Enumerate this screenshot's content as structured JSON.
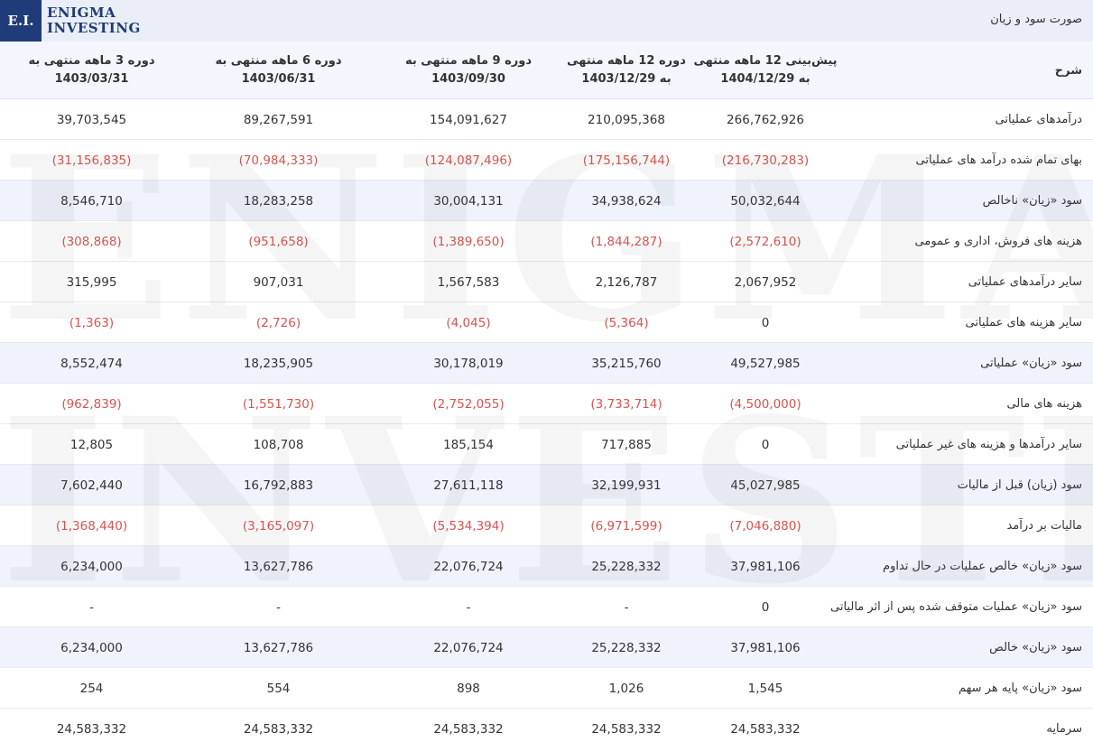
{
  "header": {
    "title": "صورت سود و زیان",
    "logo_mark": "E.I.",
    "logo_line1": "ENIGMA",
    "logo_line2": "INVESTING"
  },
  "watermark": {
    "line1": "ENIGMA",
    "line2": "INVESTING"
  },
  "columns": {
    "label": "شرح",
    "col5": "پیش‌بینی 12 ماهه منتهی به 1404/12/29",
    "col4": "دوره 12 ماهه منتهی به 1403/12/29",
    "col3": "دوره 9 ماهه منتهی به 1403/09/30",
    "col2": "دوره 6 ماهه منتهی به 1403/06/31",
    "col1": "دوره 3 ماهه منتهی به 1403/03/31"
  },
  "colors": {
    "negative": "#d9534f",
    "alt_row": "#eef3fc",
    "brand": "#1f3b7a"
  },
  "rows": [
    {
      "label": "درآمدهای عملیاتی",
      "v5": "266,762,926",
      "v4": "210,095,368",
      "v3": "154,091,627",
      "v2": "89,267,591",
      "v1": "39,703,545",
      "neg": false,
      "alt": false
    },
    {
      "label": "بهای تمام شده درآمد های عملیاتی",
      "v5": "(216,730,283)",
      "v4": "(175,156,744)",
      "v3": "(124,087,496)",
      "v2": "(70,984,333)",
      "v1": "(31,156,835)",
      "neg": true,
      "alt": false
    },
    {
      "label": "سود «زیان» ناخالص",
      "v5": "50,032,644",
      "v4": "34,938,624",
      "v3": "30,004,131",
      "v2": "18,283,258",
      "v1": "8,546,710",
      "neg": false,
      "alt": true
    },
    {
      "label": "هزینه های فروش، اداری و عمومی",
      "v5": "(2,572,610)",
      "v4": "(1,844,287)",
      "v3": "(1,389,650)",
      "v2": "(951,658)",
      "v1": "(308,868)",
      "neg": true,
      "alt": false
    },
    {
      "label": "سایر درآمدهای عملیاتی",
      "v5": "2,067,952",
      "v4": "2,126,787",
      "v3": "1,567,583",
      "v2": "907,031",
      "v1": "315,995",
      "neg": false,
      "alt": false
    },
    {
      "label": "سایر هزینه های عملیاتی",
      "v5": "0",
      "v4": "(5,364)",
      "v3": "(4,045)",
      "v2": "(2,726)",
      "v1": "(1,363)",
      "neg": true,
      "alt": false
    },
    {
      "label": "سود «زیان» عملیاتی",
      "v5": "49,527,985",
      "v4": "35,215,760",
      "v3": "30,178,019",
      "v2": "18,235,905",
      "v1": "8,552,474",
      "neg": false,
      "alt": true
    },
    {
      "label": "هزینه های مالی",
      "v5": "(4,500,000)",
      "v4": "(3,733,714)",
      "v3": "(2,752,055)",
      "v2": "(1,551,730)",
      "v1": "(962,839)",
      "neg": true,
      "alt": false
    },
    {
      "label": "سایر درآمدها و هزینه های غیر عملیاتی",
      "v5": "0",
      "v4": "717,885",
      "v3": "185,154",
      "v2": "108,708",
      "v1": "12,805",
      "neg": false,
      "alt": false
    },
    {
      "label": "سود (زیان) قبل از مالیات",
      "v5": "45,027,985",
      "v4": "32,199,931",
      "v3": "27,611,118",
      "v2": "16,792,883",
      "v1": "7,602,440",
      "neg": false,
      "alt": true
    },
    {
      "label": "مالیات بر درآمد",
      "v5": "(7,046,880)",
      "v4": "(6,971,599)",
      "v3": "(5,534,394)",
      "v2": "(3,165,097)",
      "v1": "(1,368,440)",
      "neg": true,
      "alt": false
    },
    {
      "label": "سود «زیان» خالص عملیات در حال تداوم",
      "v5": "37,981,106",
      "v4": "25,228,332",
      "v3": "22,076,724",
      "v2": "13,627,786",
      "v1": "6,234,000",
      "neg": false,
      "alt": true
    },
    {
      "label": "سود «زیان» عملیات متوقف شده پس از اثر مالیاتی",
      "v5": "0",
      "v4": "-",
      "v3": "-",
      "v2": "-",
      "v1": "-",
      "neg": false,
      "alt": false
    },
    {
      "label": "سود «زیان» خالص",
      "v5": "37,981,106",
      "v4": "25,228,332",
      "v3": "22,076,724",
      "v2": "13,627,786",
      "v1": "6,234,000",
      "neg": false,
      "alt": true
    },
    {
      "label": "سود «زیان» پایه هر سهم",
      "v5": "1,545",
      "v4": "1,026",
      "v3": "898",
      "v2": "554",
      "v1": "254",
      "neg": false,
      "alt": false
    },
    {
      "label": "سرمایه",
      "v5": "24,583,332",
      "v4": "24,583,332",
      "v3": "24,583,332",
      "v2": "24,583,332",
      "v1": "24,583,332",
      "neg": false,
      "alt": false
    }
  ]
}
